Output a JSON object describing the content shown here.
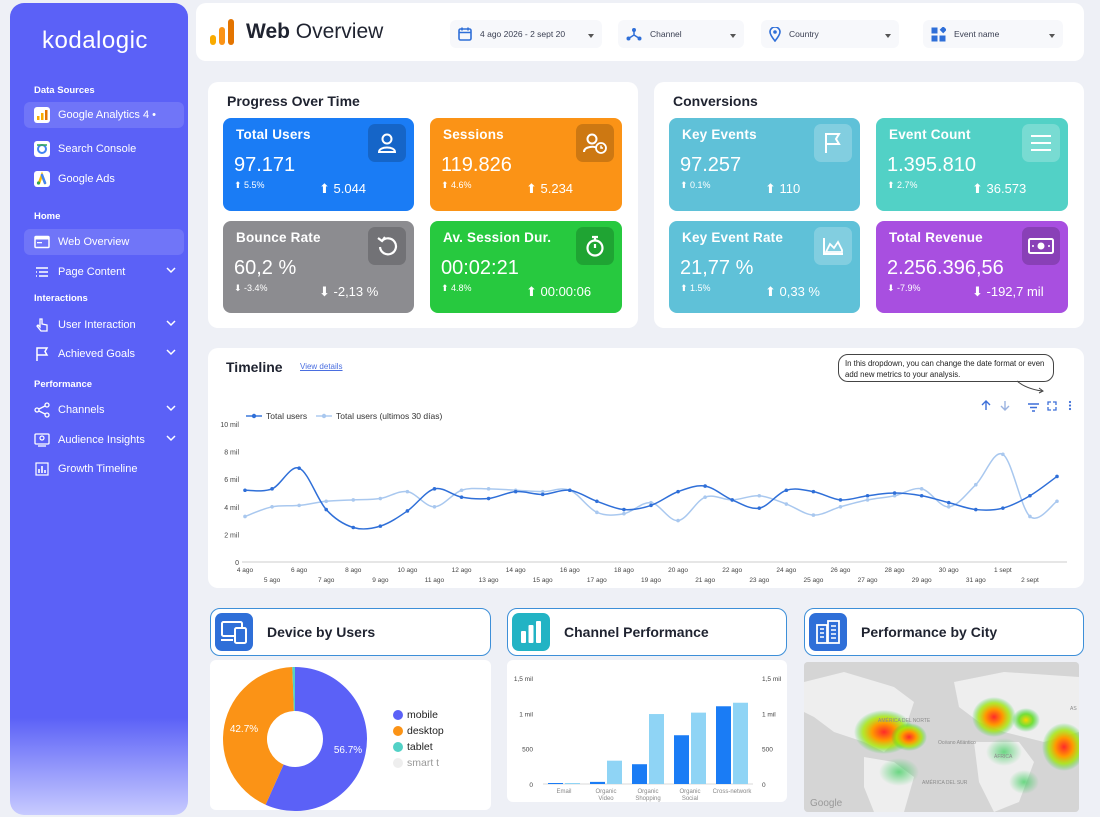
{
  "brand": "kodalogic",
  "sidebar": {
    "sections": {
      "data_sources": "Data Sources",
      "home": "Home",
      "interactions": "Interactions",
      "performance": "Performance"
    },
    "items": [
      {
        "label": "Google Analytics 4 •",
        "icon": "google-analytics-icon"
      },
      {
        "label": "Search Console",
        "icon": "search-console-icon"
      },
      {
        "label": "Google Ads",
        "icon": "google-ads-icon"
      },
      {
        "label": "Web Overview",
        "icon": "browser-window-icon"
      },
      {
        "label": "Page Content",
        "icon": "list-icon"
      },
      {
        "label": "User Interaction",
        "icon": "pointer-hand-icon"
      },
      {
        "label": "Achieved Goals",
        "icon": "flag-icon"
      },
      {
        "label": "Channels",
        "icon": "share-nodes-icon"
      },
      {
        "label": "Audience Insights",
        "icon": "audience-icon"
      },
      {
        "label": "Growth Timeline",
        "icon": "bar-chart-icon"
      }
    ]
  },
  "header": {
    "title_bold": "Web",
    "title_rest": " Overview",
    "filters": {
      "date": "4 ago 2026 - 2 sept 20",
      "channel": "Channel",
      "country": "Country",
      "event": "Event name"
    }
  },
  "progress": {
    "title": "Progress Over Time",
    "cards": [
      {
        "title": "Total Users",
        "value": "97.171",
        "pct": "⬆ 5.5%",
        "delta": "⬆ 5.044",
        "color": "#1a7cf5"
      },
      {
        "title": "Sessions",
        "value": "119.826",
        "pct": "⬆ 4.6%",
        "delta": "⬆ 5.234",
        "color": "#fb9316"
      },
      {
        "title": "Bounce Rate",
        "value": "60,2 %",
        "pct": "⬇ -3.4%",
        "delta": "⬇ -2,13 %",
        "color": "#8c8c90"
      },
      {
        "title": "Av. Session Dur.",
        "value": "00:02:21",
        "pct": "⬆ 4.8%",
        "delta": "⬆ 00:00:06",
        "color": "#27c93f"
      }
    ]
  },
  "conversions": {
    "title": "Conversions",
    "cards": [
      {
        "title": "Key Events",
        "value": "97.257",
        "pct": "⬆ 0.1%",
        "delta": "⬆ 110",
        "color": "#5fc1d8"
      },
      {
        "title": "Event Count",
        "value": "1.395.810",
        "pct": "⬆ 2.7%",
        "delta": "⬆ 36.573",
        "color": "#52d1c6"
      },
      {
        "title": "Key Event Rate",
        "value": "21,77 %",
        "pct": "⬆ 1.5%",
        "delta": "⬆ 0,33 %",
        "color": "#5fc1d8"
      },
      {
        "title": "Total Revenue",
        "value": "2.256.396,56",
        "pct": "⬇ -7.9%",
        "delta": "⬇ -192,7 mil",
        "color": "#a84fe0"
      }
    ]
  },
  "timeline": {
    "title": "Timeline",
    "view_details": "View details",
    "tooltip": "In this dropdown, you can change the date format or even add new metrics to your analysis."
  },
  "chart_data": [
    {
      "type": "line",
      "series": [
        {
          "name": "Total users",
          "color": "#2f6fd8",
          "values": [
            5.2,
            5.3,
            6.8,
            3.8,
            2.5,
            2.6,
            3.7,
            5.3,
            4.7,
            4.6,
            5.1,
            4.9,
            5.2,
            4.4,
            3.8,
            4.1,
            5.1,
            5.5,
            4.5,
            3.9,
            5.2,
            5.1,
            4.5,
            4.8,
            5.0,
            4.8,
            4.3,
            3.8,
            3.9,
            4.8,
            6.2
          ]
        },
        {
          "name": "Total users (ultimos 30 días)",
          "color": "#a9c8ef",
          "values": [
            3.3,
            4.0,
            4.1,
            4.4,
            4.5,
            4.6,
            5.1,
            4.0,
            5.2,
            5.3,
            5.2,
            5.1,
            5.2,
            3.6,
            3.5,
            4.3,
            3.0,
            4.7,
            4.5,
            4.8,
            4.2,
            3.4,
            4.0,
            4.5,
            4.8,
            5.3,
            4.0,
            5.6,
            7.8,
            3.3,
            4.4
          ]
        }
      ],
      "x_labels_upper": [
        "4 ago",
        "6 ago",
        "8 ago",
        "10 ago",
        "12 ago",
        "14 ago",
        "16 ago",
        "18 ago",
        "20 ago",
        "22 ago",
        "24 ago",
        "26 ago",
        "28 ago",
        "30 ago",
        "1 sept"
      ],
      "x_labels_lower": [
        "5 ago",
        "7 ago",
        "9 ago",
        "11 ago",
        "13 ago",
        "15 ago",
        "17 ago",
        "19 ago",
        "21 ago",
        "23 ago",
        "25 ago",
        "27 ago",
        "29 ago",
        "31 ago",
        "2 sept"
      ],
      "y_ticks": [
        "0",
        "2 mil",
        "4 mil",
        "6 mil",
        "8 mil",
        "10 mil"
      ],
      "ylim": [
        0,
        10
      ]
    },
    {
      "type": "pie",
      "title": "Device by Users",
      "slices": [
        {
          "label": "mobile",
          "value": 56.7,
          "color": "#5b61f7"
        },
        {
          "label": "desktop",
          "value": 42.7,
          "color": "#fb9316"
        },
        {
          "label": "tablet",
          "value": 0.6,
          "color": "#52d1c6"
        },
        {
          "label": "smart t",
          "value": 0.0,
          "color": "#eeeeee"
        }
      ],
      "labels_shown": [
        "56.7%",
        "42.7%"
      ],
      "legend_labels": [
        "mobile",
        "desktop",
        "tablet",
        "smart t"
      ]
    },
    {
      "type": "bar",
      "title": "Channel Performance",
      "categories": [
        "Email",
        "Organic Video",
        "Organic Shopping",
        "Organic Social",
        "Cross-network"
      ],
      "series": [
        {
          "values": [
            0,
            30,
            280,
            690,
            1100
          ],
          "color": "#1a7cf5"
        },
        {
          "values": [
            0,
            330,
            990,
            1010,
            1150
          ],
          "color": "#8fd4f5"
        }
      ],
      "y_ticks": [
        "0",
        "500",
        "1 mil",
        "1,5 mil"
      ],
      "ylim": [
        0,
        1500
      ]
    }
  ],
  "bottom": {
    "device_title": "Device by Users",
    "channel_title": "Channel Performance",
    "city_title": "Performance by City"
  },
  "map": {
    "labels": [
      "AMÉRICA DEL NORTE",
      "Océano Atlántico",
      "ÁFRICA",
      "AMÉRICA DEL SUR",
      "AS"
    ],
    "brand": "Google"
  }
}
